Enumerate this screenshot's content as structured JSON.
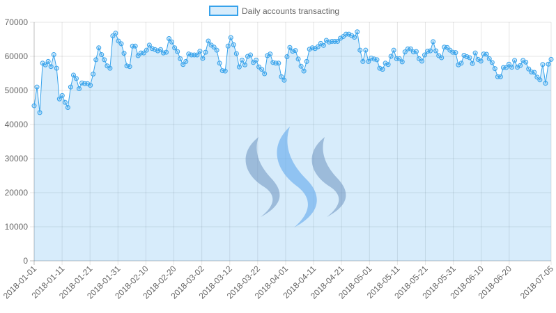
{
  "chart_data": {
    "type": "area",
    "title": "",
    "xlabel": "",
    "ylabel": "",
    "legend": {
      "position": "top",
      "entries": [
        "Daily accounts transacting"
      ]
    },
    "grid": true,
    "ylim": [
      0,
      70000
    ],
    "yticks": [
      0,
      10000,
      20000,
      30000,
      40000,
      50000,
      60000,
      70000
    ],
    "xticks": [
      "2018-01-01",
      "2018-01-11",
      "2018-01-21",
      "2018-01-31",
      "2018-02-10",
      "2018-02-20",
      "2018-03-02",
      "2018-03-12",
      "2018-03-22",
      "2018-04-01",
      "2018-04-11",
      "2018-04-21",
      "2018-05-01",
      "2018-05-11",
      "2018-05-21",
      "2018-05-31",
      "2018-06-10",
      "2018-06-20",
      "2018-07-05"
    ],
    "x_start": "2018-01-01",
    "x_end": "2018-07-05",
    "series": [
      {
        "name": "Daily accounts transacting",
        "color": "#36a2eb",
        "fill": "rgba(54,162,235,0.2)",
        "values": [
          45500,
          51000,
          43500,
          58000,
          57500,
          58500,
          57000,
          60500,
          56500,
          47500,
          48500,
          46500,
          45000,
          51000,
          54500,
          53500,
          50500,
          52200,
          52000,
          52000,
          51500,
          54800,
          59000,
          62500,
          60500,
          59000,
          57200,
          56500,
          66000,
          66800,
          64500,
          63700,
          60900,
          57200,
          57000,
          63000,
          63000,
          60200,
          61000,
          61000,
          61800,
          63300,
          62300,
          62000,
          61600,
          62000,
          61000,
          61200,
          65200,
          64200,
          62500,
          61400,
          59300,
          57600,
          58500,
          60700,
          60400,
          60400,
          60400,
          61500,
          59400,
          61200,
          64500,
          63300,
          62700,
          61800,
          58000,
          55800,
          55700,
          63000,
          65500,
          63400,
          60800,
          56900,
          58900,
          57500,
          60000,
          60400,
          58200,
          58900,
          56900,
          56200,
          54900,
          60200,
          60700,
          58200,
          58000,
          58000,
          54000,
          53000,
          59900,
          62600,
          61500,
          61700,
          59200,
          57100,
          55700,
          58500,
          62100,
          62500,
          62300,
          62800,
          63800,
          63200,
          64700,
          64200,
          64400,
          64400,
          64400,
          65300,
          65800,
          66500,
          66500,
          66100,
          65600,
          67200,
          61800,
          58500,
          61800,
          58500,
          59500,
          59200,
          59000,
          56500,
          56200,
          58000,
          57600,
          60000,
          61800,
          59300,
          59300,
          58400,
          61300,
          62200,
          62200,
          61300,
          61400,
          59300,
          58600,
          60400,
          61500,
          61600,
          64300,
          61600,
          60200,
          59600,
          62700,
          62600,
          61800,
          61200,
          61100,
          57500,
          58000,
          60300,
          59900,
          59600,
          57900,
          61000,
          59100,
          58600,
          60700,
          60600,
          59300,
          58200,
          56400,
          54000,
          54000,
          56700,
          56700,
          57700,
          56800,
          58800,
          56800,
          57300,
          58800,
          58300,
          56300,
          55400,
          55300,
          53900,
          53100,
          57600,
          52100,
          57700,
          59100
        ]
      }
    ]
  },
  "watermark": {
    "name": "steem-logo",
    "color": "#7a8fb5"
  }
}
